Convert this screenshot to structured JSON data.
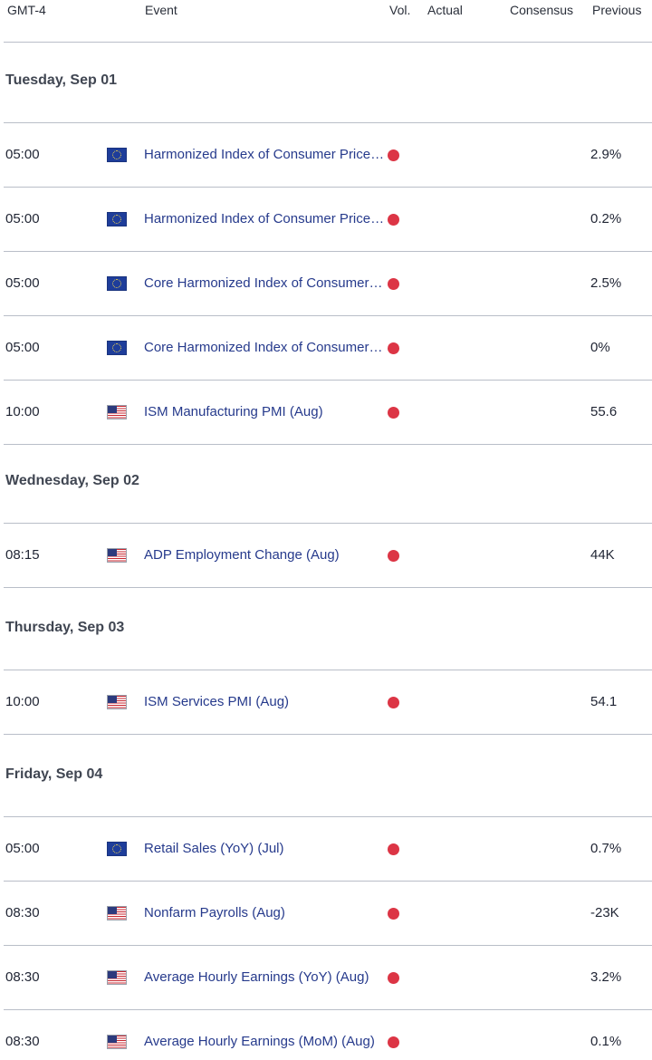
{
  "header": {
    "timezone": "GMT-4",
    "event": "Event",
    "vol": "Vol.",
    "actual": "Actual",
    "consensus": "Consensus",
    "previous": "Previous"
  },
  "colors": {
    "event_link": "#263a8c",
    "volatility_high": "#dc3545"
  },
  "days": [
    {
      "label": "Tuesday, Sep 01",
      "events": [
        {
          "time": "05:00",
          "region": "EU",
          "flag_icon": "eu-flag-icon",
          "name": "Harmonized Index of Consumer Prices (YoY) (Aug)",
          "volatility": "high",
          "actual": "",
          "consensus": "",
          "previous": "2.9%"
        },
        {
          "time": "05:00",
          "region": "EU",
          "flag_icon": "eu-flag-icon",
          "name": "Harmonized Index of Consumer Prices (MoM) (Aug)",
          "volatility": "high",
          "actual": "",
          "consensus": "",
          "previous": "0.2%"
        },
        {
          "time": "05:00",
          "region": "EU",
          "flag_icon": "eu-flag-icon",
          "name": "Core Harmonized Index of Consumer Prices (YoY) (Aug)",
          "volatility": "high",
          "actual": "",
          "consensus": "",
          "previous": "2.5%"
        },
        {
          "time": "05:00",
          "region": "EU",
          "flag_icon": "eu-flag-icon",
          "name": "Core Harmonized Index of Consumer Prices (MoM) (Aug)",
          "volatility": "high",
          "actual": "",
          "consensus": "",
          "previous": "0%"
        },
        {
          "time": "10:00",
          "region": "US",
          "flag_icon": "us-flag-icon",
          "name": "ISM Manufacturing PMI (Aug)",
          "volatility": "high",
          "actual": "",
          "consensus": "",
          "previous": "55.6"
        }
      ]
    },
    {
      "label": "Wednesday, Sep 02",
      "events": [
        {
          "time": "08:15",
          "region": "US",
          "flag_icon": "us-flag-icon",
          "name": "ADP Employment Change (Aug)",
          "volatility": "high",
          "actual": "",
          "consensus": "",
          "previous": "44K"
        }
      ]
    },
    {
      "label": "Thursday, Sep 03",
      "events": [
        {
          "time": "10:00",
          "region": "US",
          "flag_icon": "us-flag-icon",
          "name": "ISM Services PMI (Aug)",
          "volatility": "high",
          "actual": "",
          "consensus": "",
          "previous": "54.1"
        }
      ]
    },
    {
      "label": "Friday, Sep 04",
      "events": [
        {
          "time": "05:00",
          "region": "EU",
          "flag_icon": "eu-flag-icon",
          "name": "Retail Sales (YoY) (Jul)",
          "volatility": "high",
          "actual": "",
          "consensus": "",
          "previous": "0.7%"
        },
        {
          "time": "08:30",
          "region": "US",
          "flag_icon": "us-flag-icon",
          "name": "Nonfarm Payrolls (Aug)",
          "volatility": "high",
          "actual": "",
          "consensus": "",
          "previous": "-23K"
        },
        {
          "time": "08:30",
          "region": "US",
          "flag_icon": "us-flag-icon",
          "name": "Average Hourly Earnings (YoY) (Aug)",
          "volatility": "high",
          "actual": "",
          "consensus": "",
          "previous": "3.2%"
        },
        {
          "time": "08:30",
          "region": "US",
          "flag_icon": "us-flag-icon",
          "name": "Average Hourly Earnings (MoM) (Aug)",
          "volatility": "high",
          "actual": "",
          "consensus": "",
          "previous": "0.1%"
        }
      ]
    }
  ]
}
